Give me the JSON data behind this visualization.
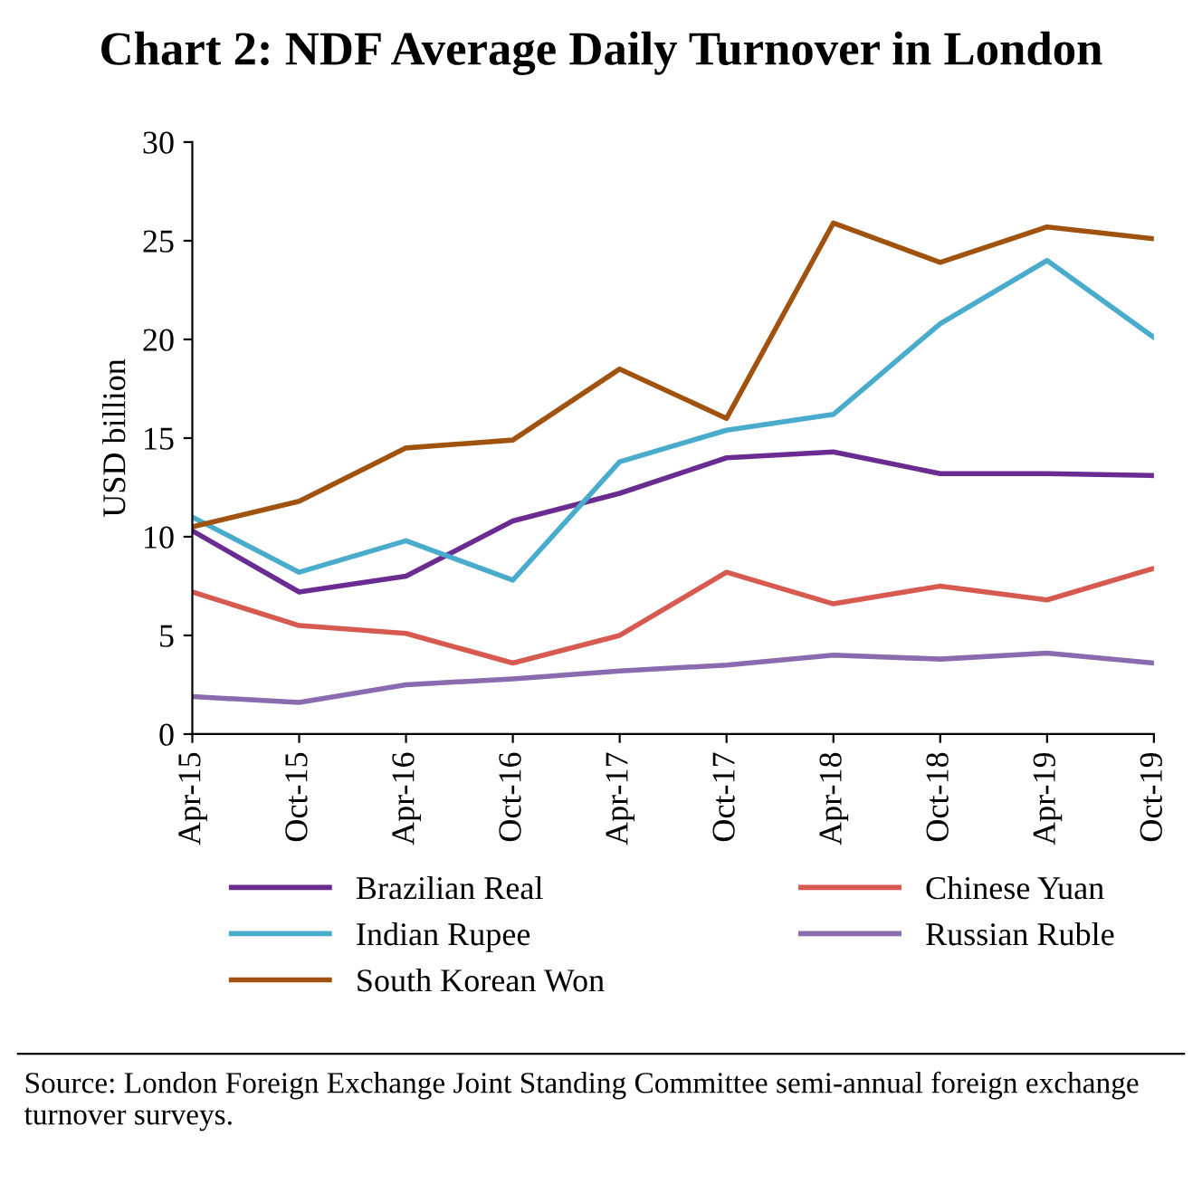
{
  "chart_data": {
    "type": "line",
    "title": "Chart 2: NDF Average Daily Turnover in London",
    "ylabel": "USD billion",
    "categories": [
      "Apr-15",
      "Oct-15",
      "Apr-16",
      "Oct-16",
      "Apr-17",
      "Oct-17",
      "Apr-18",
      "Oct-18",
      "Apr-19",
      "Oct-19"
    ],
    "series": [
      {
        "name": "Brazilian Real",
        "color": "#6a2c91",
        "values": [
          10.3,
          7.2,
          8.0,
          10.8,
          12.2,
          14.0,
          14.3,
          13.2,
          13.2,
          13.1
        ]
      },
      {
        "name": "Indian Rupee",
        "color": "#4aaccc",
        "values": [
          11.0,
          8.2,
          9.8,
          7.8,
          13.8,
          15.4,
          16.2,
          20.8,
          24.0,
          20.1
        ]
      },
      {
        "name": "South Korean Won",
        "color": "#a0520f",
        "values": [
          10.5,
          11.8,
          14.5,
          14.9,
          18.5,
          16.0,
          25.9,
          23.9,
          25.7,
          25.1
        ]
      },
      {
        "name": "Chinese Yuan",
        "color": "#d65a50",
        "values": [
          7.2,
          5.5,
          5.1,
          3.6,
          5.0,
          8.2,
          6.6,
          7.5,
          6.8,
          8.4
        ]
      },
      {
        "name": "Russian Ruble",
        "color": "#8a6bb0",
        "values": [
          1.9,
          1.6,
          2.5,
          2.8,
          3.2,
          3.5,
          4.0,
          3.8,
          4.1,
          3.6
        ]
      }
    ],
    "ylim": [
      0,
      30
    ],
    "yticks": [
      0,
      5,
      10,
      15,
      20,
      25,
      30
    ],
    "grid": false,
    "legend": "bottom",
    "marker": "none",
    "line_style": "solid",
    "annotations": [
      "Source: London Foreign Exchange Joint Standing Committee semi-annual foreign exchange turnover surveys."
    ]
  }
}
